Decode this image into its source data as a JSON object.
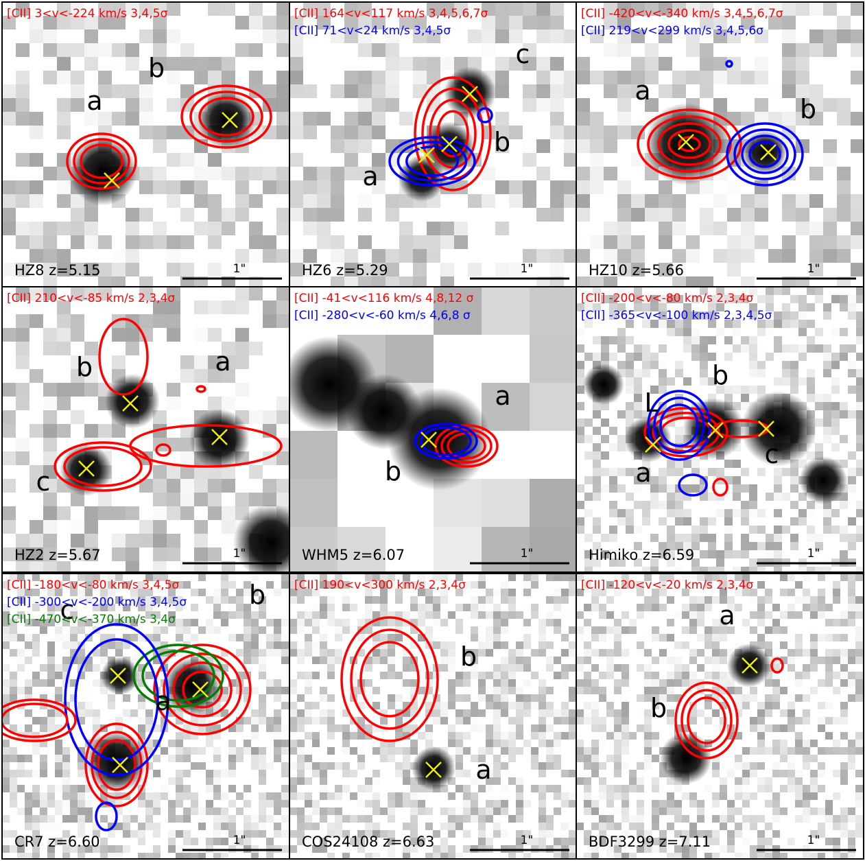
{
  "panels": [
    {
      "name": "HZ8 z=5.15",
      "scale": "1\"",
      "lines": [
        {
          "text": "[CII] 3<v<-224 km/s  3,4,5σ",
          "color": "red"
        }
      ],
      "components": [
        "a",
        "b"
      ]
    },
    {
      "name": "HZ6 z=5.29",
      "scale": "1\"",
      "lines": [
        {
          "text": "[CII] 164<v<117 km/s 3,4,5,6,7σ",
          "color": "red"
        },
        {
          "text": "[CII] 71<v<24 km/s 3,4,5σ",
          "color": "blue"
        }
      ],
      "components": [
        "c",
        "b",
        "a"
      ]
    },
    {
      "name": "HZ10 z=5.66",
      "scale": "1\"",
      "lines": [
        {
          "text": "[CII] -420<v<-340 km/s 3,4,5,6,7σ",
          "color": "red"
        },
        {
          "text": "[CII] 219<v<299 km/s 3,4,5,6σ",
          "color": "blue"
        }
      ],
      "components": [
        "a",
        "b"
      ]
    },
    {
      "name": "HZ2 z=5.67",
      "scale": "1\"",
      "lines": [
        {
          "text": "[CII] 210<v<-85 km/s 2,3,4σ",
          "color": "red"
        }
      ],
      "components": [
        "b",
        "a",
        "c"
      ]
    },
    {
      "name": "WHM5 z=6.07",
      "scale": "1\"",
      "lines": [
        {
          "text": "[CII] -41<v<116 km/s 4,8,12 σ",
          "color": "red"
        },
        {
          "text": "[CII] -280<v<-60 km/s 4,6,8 σ",
          "color": "blue"
        }
      ],
      "components": [
        "a",
        "b"
      ]
    },
    {
      "name": "Himiko z=6.59",
      "scale": "1\"",
      "lines": [
        {
          "text": "[CII] -200<v<-80 km/s 2,3,4σ",
          "color": "red"
        },
        {
          "text": "[CII] -365<v<-100 km/s 2,3,4,5σ",
          "color": "blue"
        }
      ],
      "components": [
        "L",
        "b",
        "c",
        "a"
      ]
    },
    {
      "name": "CR7 z=6.60",
      "scale": "1\"",
      "lines": [
        {
          "text": "[CII] -180<v<-80 km/s 3,4,5σ",
          "color": "red"
        },
        {
          "text": "[CII] -300<v<-200 km/s 3,4,5σ",
          "color": "blue"
        },
        {
          "text": "[CII] -470<v<-370 km/s 3,4σ",
          "color": "green"
        }
      ],
      "components": [
        "c",
        "b",
        "a"
      ]
    },
    {
      "name": "COS24108 z=6.63",
      "scale": "1\"",
      "lines": [
        {
          "text": "[CII] 190<v<300 km/s 2,3,4σ",
          "color": "red"
        }
      ],
      "components": [
        "b",
        "a"
      ]
    },
    {
      "name": "BDF3299 z=7.11",
      "scale": "1\"",
      "lines": [
        {
          "text": "[CII] -120<v<-20 km/s 2,3,4σ",
          "color": "red"
        }
      ],
      "components": [
        "a",
        "b"
      ]
    }
  ]
}
